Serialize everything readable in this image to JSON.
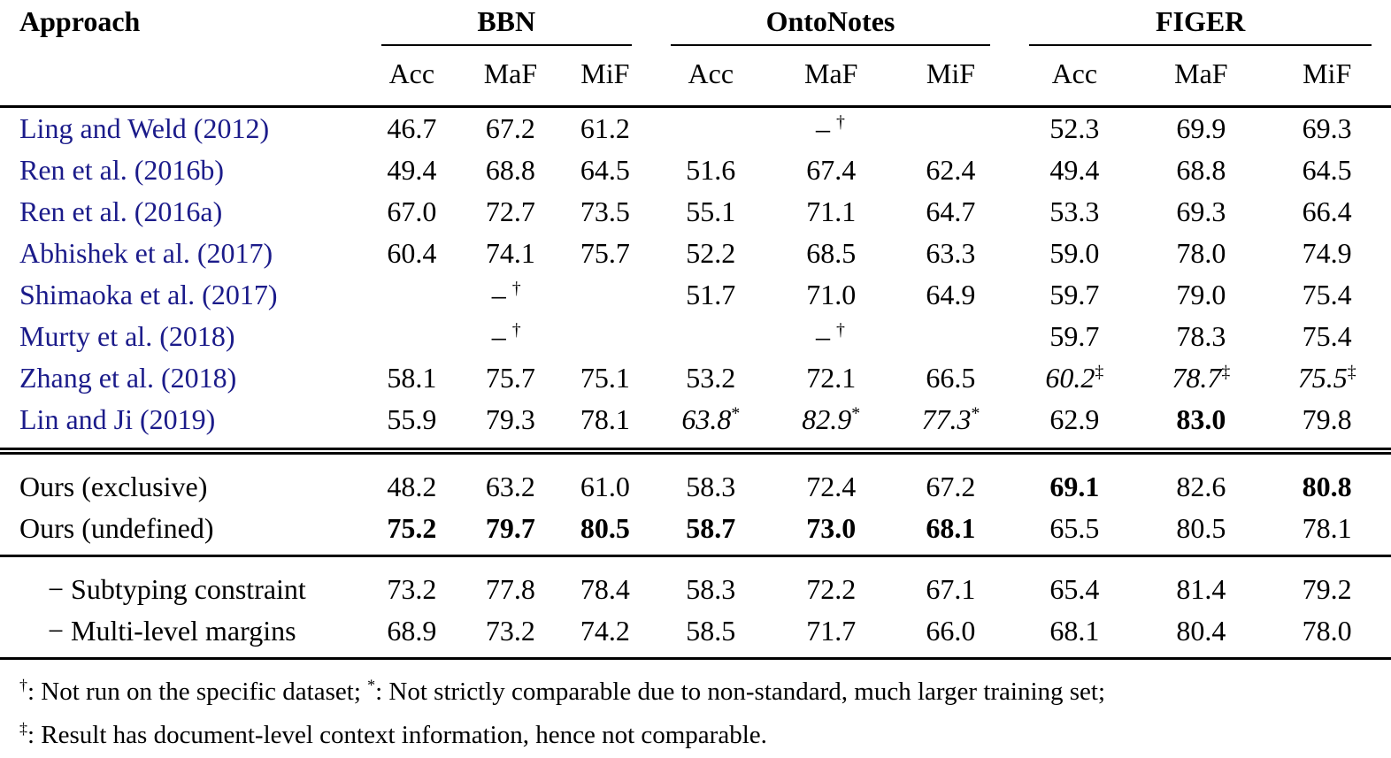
{
  "page": {
    "background": "#ffffff",
    "text_color": "#000000",
    "link_color": "#1b1b8a"
  },
  "table": {
    "approach_header": "Approach",
    "groups": [
      {
        "label": "BBN"
      },
      {
        "label": "OntoNotes"
      },
      {
        "label": "FIGER"
      }
    ],
    "metrics": [
      "Acc",
      "MaF",
      "MiF"
    ],
    "na_marker": {
      "dash": "–",
      "sup": "†"
    },
    "rows": [
      {
        "label": "Ling and Weld (2012)",
        "link": true,
        "indent": false,
        "rule_after": "",
        "pad_top": false,
        "cells": [
          {
            "na": false,
            "values": [
              "46.7",
              "67.2",
              "61.2"
            ]
          },
          {
            "na": true
          },
          {
            "na": false,
            "values": [
              "52.3",
              "69.9",
              "69.3"
            ]
          }
        ]
      },
      {
        "label": "Ren et al. (2016b)",
        "link": true,
        "indent": false,
        "rule_after": "",
        "pad_top": false,
        "cells": [
          {
            "na": false,
            "values": [
              "49.4",
              "68.8",
              "64.5"
            ]
          },
          {
            "na": false,
            "values": [
              "51.6",
              "67.4",
              "62.4"
            ]
          },
          {
            "na": false,
            "values": [
              "49.4",
              "68.8",
              "64.5"
            ]
          }
        ]
      },
      {
        "label": "Ren et al. (2016a)",
        "link": true,
        "indent": false,
        "rule_after": "",
        "pad_top": false,
        "cells": [
          {
            "na": false,
            "values": [
              "67.0",
              "72.7",
              "73.5"
            ]
          },
          {
            "na": false,
            "values": [
              "55.1",
              "71.1",
              "64.7"
            ]
          },
          {
            "na": false,
            "values": [
              "53.3",
              "69.3",
              "66.4"
            ]
          }
        ]
      },
      {
        "label": "Abhishek et al. (2017)",
        "link": true,
        "indent": false,
        "rule_after": "",
        "pad_top": false,
        "cells": [
          {
            "na": false,
            "values": [
              "60.4",
              "74.1",
              "75.7"
            ]
          },
          {
            "na": false,
            "values": [
              "52.2",
              "68.5",
              "63.3"
            ]
          },
          {
            "na": false,
            "values": [
              "59.0",
              "78.0",
              "74.9"
            ]
          }
        ]
      },
      {
        "label": "Shimaoka et al. (2017)",
        "link": true,
        "indent": false,
        "rule_after": "",
        "pad_top": false,
        "cells": [
          {
            "na": true
          },
          {
            "na": false,
            "values": [
              "51.7",
              "71.0",
              "64.9"
            ]
          },
          {
            "na": false,
            "values": [
              "59.7",
              "79.0",
              "75.4"
            ]
          }
        ]
      },
      {
        "label": "Murty et al. (2018)",
        "link": true,
        "indent": false,
        "rule_after": "",
        "pad_top": false,
        "cells": [
          {
            "na": true
          },
          {
            "na": true
          },
          {
            "na": false,
            "values": [
              "59.7",
              "78.3",
              "75.4"
            ]
          }
        ]
      },
      {
        "label": "Zhang et al. (2018)",
        "link": true,
        "indent": false,
        "rule_after": "",
        "pad_top": false,
        "cells": [
          {
            "na": false,
            "values": [
              "58.1",
              "75.7",
              "75.1"
            ]
          },
          {
            "na": false,
            "values": [
              "53.2",
              "72.1",
              "66.5"
            ]
          },
          {
            "na": false,
            "values": [
              {
                "v": "60.2",
                "i": true,
                "sup": "‡"
              },
              {
                "v": "78.7",
                "i": true,
                "sup": "‡"
              },
              {
                "v": "75.5",
                "i": true,
                "sup": "‡"
              }
            ]
          }
        ]
      },
      {
        "label": "Lin and Ji (2019)",
        "link": true,
        "indent": false,
        "rule_after": "double",
        "pad_top": false,
        "cells": [
          {
            "na": false,
            "values": [
              "55.9",
              "79.3",
              "78.1"
            ]
          },
          {
            "na": false,
            "values": [
              {
                "v": "63.8",
                "i": true,
                "sup": "*"
              },
              {
                "v": "82.9",
                "i": true,
                "sup": "*"
              },
              {
                "v": "77.3",
                "i": true,
                "sup": "*"
              }
            ]
          },
          {
            "na": false,
            "values": [
              "62.9",
              {
                "v": "83.0",
                "b": true
              },
              "79.8"
            ]
          }
        ]
      },
      {
        "label": "Ours (exclusive)",
        "link": false,
        "indent": false,
        "rule_after": "",
        "pad_top": true,
        "cells": [
          {
            "na": false,
            "values": [
              "48.2",
              "63.2",
              "61.0"
            ]
          },
          {
            "na": false,
            "values": [
              "58.3",
              "72.4",
              "67.2"
            ]
          },
          {
            "na": false,
            "values": [
              {
                "v": "69.1",
                "b": true
              },
              "82.6",
              {
                "v": "80.8",
                "b": true
              }
            ]
          }
        ]
      },
      {
        "label": "Ours (undefined)",
        "link": false,
        "indent": false,
        "rule_after": "single",
        "pad_top": false,
        "cells": [
          {
            "na": false,
            "values": [
              {
                "v": "75.2",
                "b": true
              },
              {
                "v": "79.7",
                "b": true
              },
              {
                "v": "80.5",
                "b": true
              }
            ]
          },
          {
            "na": false,
            "values": [
              {
                "v": "58.7",
                "b": true
              },
              {
                "v": "73.0",
                "b": true
              },
              {
                "v": "68.1",
                "b": true
              }
            ]
          },
          {
            "na": false,
            "values": [
              "65.5",
              "80.5",
              "78.1"
            ]
          }
        ]
      },
      {
        "label": "− Subtyping constraint",
        "link": false,
        "indent": true,
        "rule_after": "",
        "pad_top": true,
        "cells": [
          {
            "na": false,
            "values": [
              "73.2",
              "77.8",
              "78.4"
            ]
          },
          {
            "na": false,
            "values": [
              "58.3",
              "72.2",
              "67.1"
            ]
          },
          {
            "na": false,
            "values": [
              "65.4",
              "81.4",
              "79.2"
            ]
          }
        ]
      },
      {
        "label": "− Multi-level margins",
        "link": false,
        "indent": true,
        "rule_after": "single",
        "pad_top": false,
        "cells": [
          {
            "na": false,
            "values": [
              "68.9",
              "73.2",
              "74.2"
            ]
          },
          {
            "na": false,
            "values": [
              "58.5",
              "71.7",
              "66.0"
            ]
          },
          {
            "na": false,
            "values": [
              "68.1",
              "80.4",
              "78.0"
            ]
          }
        ]
      }
    ],
    "footnotes": [
      [
        {
          "s": "†"
        },
        {
          "t": ": Not run on the specific dataset; "
        },
        {
          "s": "*"
        },
        {
          "t": ": Not strictly comparable due to non-standard, much larger training set;"
        }
      ],
      [
        {
          "s": "‡"
        },
        {
          "t": ": Result has document-level context information, hence not comparable."
        }
      ]
    ]
  }
}
